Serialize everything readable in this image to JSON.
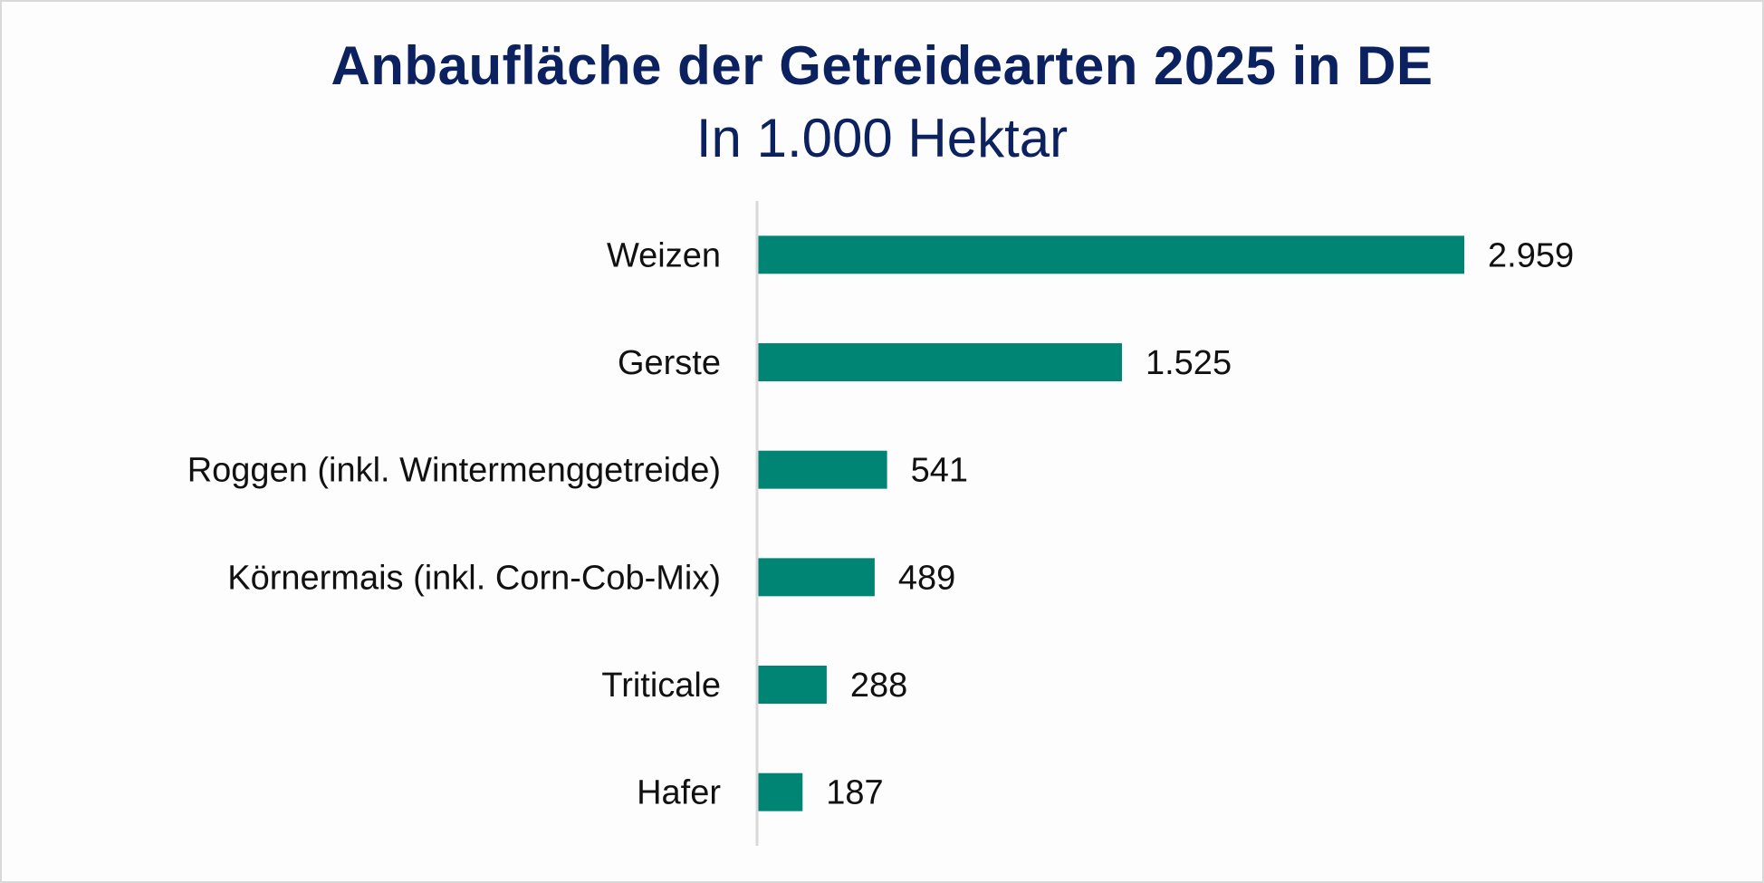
{
  "chart_data": {
    "type": "bar",
    "orientation": "horizontal",
    "title": "Anbaufläche der Getreidearten 2025 in DE",
    "subtitle": "In 1.000 Hektar",
    "xlabel": "",
    "ylabel": "",
    "categories": [
      "Weizen",
      "Gerste",
      "Roggen (inkl. Wintermenggetreide)",
      "Körnermais (inkl. Corn-Cob-Mix)",
      "Triticale",
      "Hafer"
    ],
    "values": [
      2959,
      1525,
      541,
      489,
      288,
      187
    ],
    "value_labels": [
      "2.959",
      "1.525",
      "541",
      "489",
      "288",
      "187"
    ],
    "xlim": [
      0,
      2959
    ],
    "grid": false,
    "legend": "none"
  },
  "colors": {
    "title": "#0b2160",
    "bar": "#008575",
    "axis": "#d9d9d9",
    "text": "#111111"
  }
}
